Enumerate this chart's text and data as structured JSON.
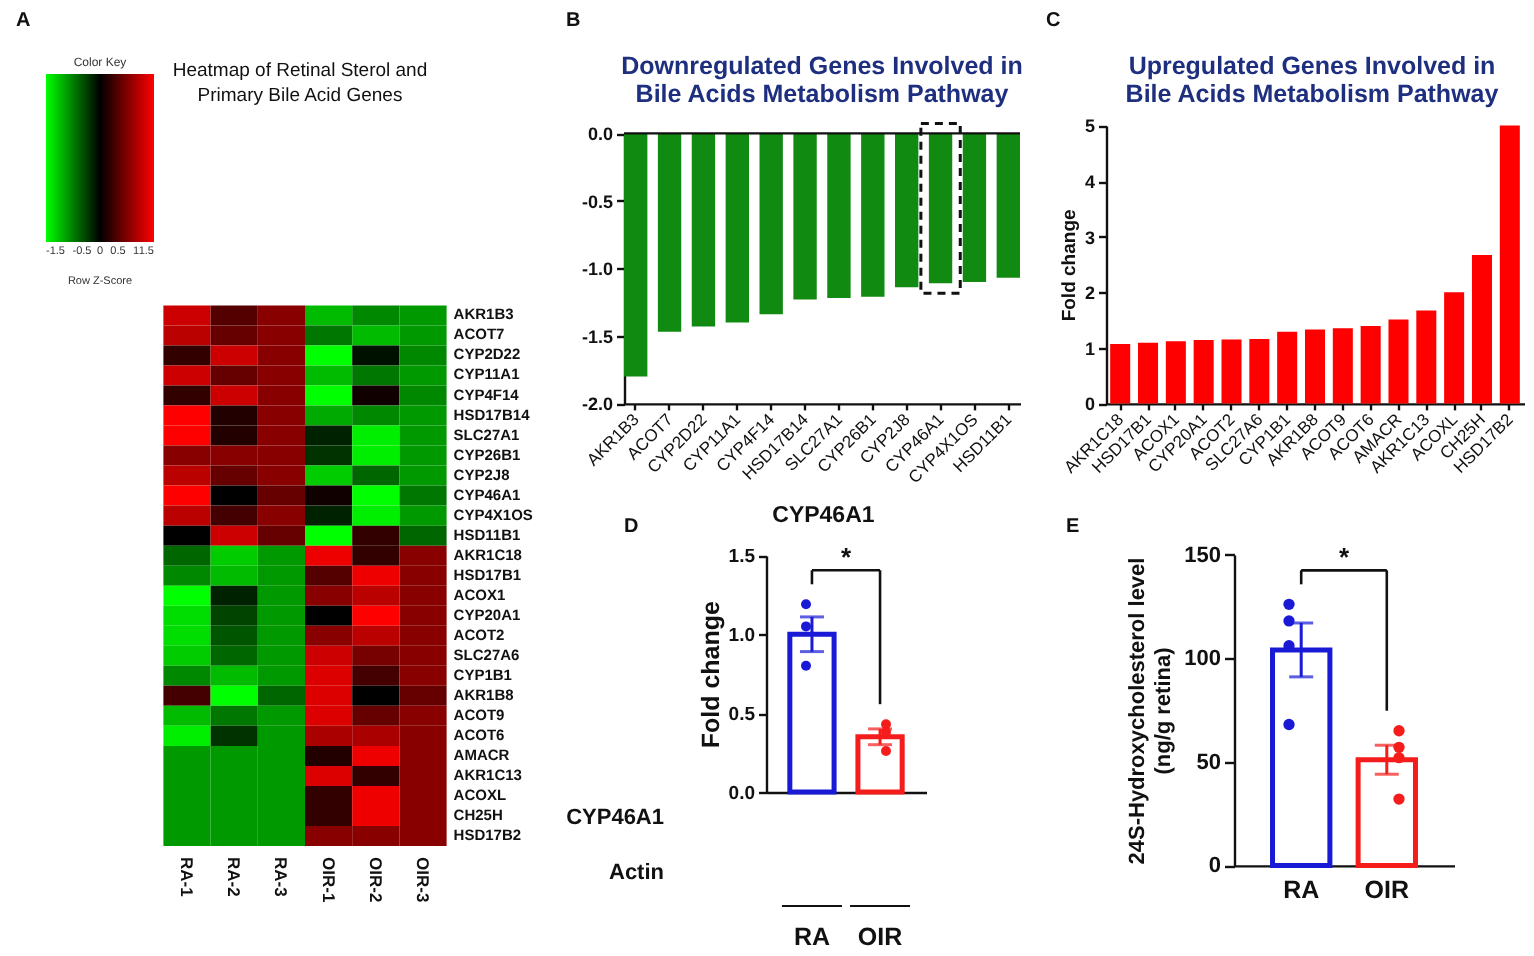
{
  "chart_data": [
    {
      "type": "heatmap",
      "title": "Heatmap of Retinal Sterol and\nPrimary Bile Acid Genes",
      "legend_title": "Color Key",
      "clabel": "Row Z-Score",
      "categories": [
        "RA-1",
        "RA-2",
        "RA-3",
        "OIR-1",
        "OIR-2",
        "OIR-3"
      ],
      "y_categories": [
        "AKR1B3",
        "ACOT7",
        "CYP2D22",
        "CYP11A1",
        "CYP4F14",
        "HSD17B14",
        "SLC27A1",
        "CYP26B1",
        "CYP2J8",
        "CYP46A1",
        "CYP4X1OS",
        "HSD11B1",
        "AKR1C18",
        "HSD17B1",
        "ACOX1",
        "CYP20A1",
        "ACOT2",
        "SLC27A6",
        "CYP1B1",
        "AKR1B8",
        "ACOT9",
        "ACOT6",
        "AMACR",
        "AKR1C13",
        "ACOXL",
        "CH25H",
        "HSD17B2"
      ],
      "cells": [
        [
          1.2,
          0.5,
          0.8,
          -1.1,
          -0.8,
          -0.9
        ],
        [
          1.1,
          0.6,
          0.8,
          -0.7,
          -1.1,
          -0.9
        ],
        [
          0.3,
          1.2,
          0.8,
          -1.5,
          -0.1,
          -0.8
        ],
        [
          1.2,
          0.6,
          0.8,
          -1.1,
          -0.7,
          -0.9
        ],
        [
          0.3,
          1.2,
          0.8,
          -1.5,
          0.1,
          -0.8
        ],
        [
          1.5,
          0.2,
          0.8,
          -1.0,
          -0.8,
          -0.9
        ],
        [
          1.5,
          0.2,
          0.8,
          -0.2,
          -1.4,
          -0.9
        ],
        [
          0.8,
          0.8,
          0.8,
          -0.3,
          -1.4,
          -0.9
        ],
        [
          1.1,
          0.6,
          0.8,
          -1.2,
          -0.6,
          -0.9
        ],
        [
          1.5,
          0.0,
          0.6,
          0.1,
          -1.5,
          -0.7
        ],
        [
          1.1,
          0.4,
          0.8,
          -0.2,
          -1.4,
          -0.9
        ],
        [
          0.0,
          1.2,
          0.6,
          -1.5,
          0.3,
          -0.6
        ],
        [
          -0.6,
          -1.2,
          -0.9,
          1.4,
          0.3,
          0.8
        ],
        [
          -0.8,
          -1.1,
          -0.9,
          0.5,
          1.4,
          0.8
        ],
        [
          -1.5,
          -0.2,
          -0.9,
          0.8,
          1.1,
          0.8
        ],
        [
          -1.3,
          -0.4,
          -0.9,
          0.0,
          1.5,
          0.8
        ],
        [
          -1.3,
          -0.5,
          -0.9,
          0.8,
          1.1,
          0.8
        ],
        [
          -1.2,
          -0.6,
          -0.9,
          1.2,
          0.7,
          0.8
        ],
        [
          -0.8,
          -1.1,
          -0.9,
          1.3,
          0.4,
          0.8
        ],
        [
          0.4,
          -1.5,
          -0.6,
          1.3,
          0.0,
          0.6
        ],
        [
          -1.1,
          -0.7,
          -0.9,
          1.3,
          0.6,
          0.8
        ],
        [
          -1.4,
          -0.3,
          -0.9,
          1.0,
          1.0,
          0.8
        ],
        [
          -0.9,
          -0.9,
          -0.9,
          0.2,
          1.4,
          0.8
        ],
        [
          -0.9,
          -0.9,
          -0.9,
          1.3,
          0.3,
          0.8
        ],
        [
          -0.9,
          -0.9,
          -0.9,
          0.3,
          1.4,
          0.8
        ],
        [
          -0.9,
          -0.9,
          -0.9,
          0.3,
          1.4,
          0.8
        ],
        [
          -0.9,
          -0.9,
          -0.9,
          0.8,
          0.8,
          0.8
        ]
      ],
      "clim": [
        -1.5,
        1.5
      ],
      "cticks": [
        -1.5,
        -0.5,
        0,
        0.5,
        1,
        1.5
      ],
      "annotations": [
        "A"
      ]
    },
    {
      "type": "bar",
      "title": "Downregulated Genes Involved in\nBile Acids Metabolism Pathway",
      "categories": [
        "AKR1B3",
        "ACOT7",
        "CYP2D22",
        "CYP11A1",
        "CYP4F14",
        "HSD17B14",
        "SLC27A1",
        "CYP26B1",
        "CYP2J8",
        "CYP46A1",
        "CYP4X1OS",
        "HSD11B1"
      ],
      "values": [
        -1.8,
        -1.47,
        -1.43,
        -1.4,
        -1.34,
        -1.23,
        -1.22,
        -1.21,
        -1.14,
        -1.11,
        -1.1,
        -1.07
      ],
      "color": "#118a11",
      "ylim": [
        -2,
        0
      ],
      "yticks": [
        {
          "value": -2,
          "label": "-2.0"
        },
        -1.5,
        {
          "value": -1,
          "label": "-1.0"
        },
        -0.5,
        {
          "value": 0,
          "label": "0.0"
        }
      ],
      "ref_lines": [
        {
          "axis": "y",
          "value": 0
        }
      ],
      "bands": [
        {
          "axis": "x",
          "from": "CYP46A1",
          "to": "CYP46A1"
        }
      ],
      "annotations": [
        "B"
      ]
    },
    {
      "type": "bar",
      "title": "Upregulated Genes Involved in\nBile Acids Metabolism Pathway",
      "ylabel": "Fold change",
      "categories": [
        "AKR1C18",
        "HSD17B1",
        "ACOX1",
        "CYP20A1",
        "ACOT2",
        "SLC27A6",
        "CYP1B1",
        "AKR1B8",
        "ACOT9",
        "ACOT6",
        "AMACR",
        "AKR1C13",
        "ACOXL",
        "CH25H",
        "HSD17B2"
      ],
      "values": [
        1.07,
        1.09,
        1.12,
        1.14,
        1.15,
        1.16,
        1.29,
        1.33,
        1.35,
        1.39,
        1.51,
        1.67,
        2.0,
        2.67,
        5.0
      ],
      "color": "#ff0000",
      "ylim": [
        0,
        5
      ],
      "yticks": [
        0,
        1,
        2,
        3,
        4,
        5
      ],
      "annotations": [
        "C"
      ]
    },
    {
      "type": "bar",
      "title": "CYP46A1",
      "ylabel": "Fold change",
      "categories": [
        "RA",
        "OIR"
      ],
      "series": [
        {
          "type": "bar",
          "values": [
            1.0,
            0.35
          ],
          "errors": [
            0.11,
            0.05
          ],
          "colors": [
            "#1a1ad6",
            "#f51c1c"
          ]
        },
        {
          "type": "scatter",
          "marker": "circle",
          "x": [
            "RA",
            "RA",
            "RA",
            "OIR",
            "OIR",
            "OIR"
          ],
          "values": [
            1.19,
            1.05,
            0.8,
            0.43,
            0.38,
            0.26
          ],
          "colors": [
            "#1a1ad6",
            "#1a1ad6",
            "#1a1ad6",
            "#f51c1c",
            "#f51c1c",
            "#f51c1c"
          ]
        }
      ],
      "ylim": [
        0,
        1.5
      ],
      "yticks": [
        {
          "value": 0,
          "label": "0.0"
        },
        0.5,
        {
          "value": 1,
          "label": "1.0"
        },
        1.5
      ],
      "annotations": [
        "D",
        "*",
        "CYP46A1",
        "Actin"
      ]
    },
    {
      "type": "bar",
      "ylabel": "24S-Hydroxycholesterol level\n(ng/g retina)",
      "categories": [
        "RA",
        "OIR"
      ],
      "series": [
        {
          "type": "bar",
          "values": [
            104,
            51
          ],
          "errors": [
            13,
            7
          ],
          "colors": [
            "#1a1ad6",
            "#f51c1c"
          ]
        },
        {
          "type": "scatter",
          "marker": "circle",
          "x": [
            "RA",
            "RA",
            "RA",
            "RA",
            "OIR",
            "OIR",
            "OIR",
            "OIR"
          ],
          "values": [
            126,
            118,
            106,
            68,
            65,
            57,
            52,
            32
          ],
          "colors": [
            "#1a1ad6",
            "#1a1ad6",
            "#1a1ad6",
            "#1a1ad6",
            "#f51c1c",
            "#f51c1c",
            "#f51c1c",
            "#f51c1c"
          ]
        }
      ],
      "ylim": [
        0,
        150
      ],
      "yticks": [
        0,
        50,
        100,
        150
      ],
      "annotations": [
        "E",
        "*"
      ]
    }
  ]
}
